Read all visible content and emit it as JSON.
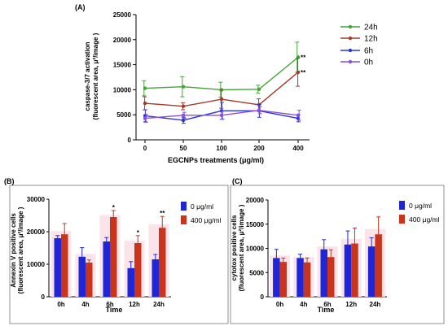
{
  "chart_data": [
    {
      "panel": "(A)",
      "type": "line",
      "xlabel": "EGCNPs treatments (μg/ml)",
      "ylabel_line1": "caspase-3/7 activation",
      "ylabel_line2": "(fluorescent area, μ²/image )",
      "x": [
        0,
        50,
        100,
        200,
        400
      ],
      "x_ticks": [
        "0",
        "50",
        "100",
        "200",
        "400"
      ],
      "ylim": [
        0,
        25000
      ],
      "y_ticks": [
        "0",
        "5000",
        "10000",
        "15000",
        "20000",
        "25000"
      ],
      "legend_position": "right",
      "series": [
        {
          "name": "24h",
          "color": "#3fa535",
          "values": [
            10300,
            10600,
            10000,
            10100,
            16500
          ],
          "errors": [
            1500,
            2000,
            1500,
            800,
            3000
          ]
        },
        {
          "name": "12h",
          "color": "#a43a2a",
          "values": [
            7300,
            6700,
            8100,
            7000,
            13500
          ],
          "errors": [
            1300,
            700,
            1800,
            1200,
            2800
          ]
        },
        {
          "name": "6h",
          "color": "#2b35d6",
          "values": [
            4800,
            3900,
            5800,
            5800,
            4300
          ],
          "errors": [
            1200,
            600,
            1700,
            1300,
            700
          ]
        },
        {
          "name": "0h",
          "color": "#8a4fd8",
          "values": [
            4300,
            4900,
            4900,
            5900,
            4900
          ],
          "errors": [
            800,
            600,
            800,
            700,
            1000
          ]
        }
      ],
      "annotations": [
        {
          "x": 400,
          "series": "24h",
          "text": "**"
        },
        {
          "x": 400,
          "series": "12h",
          "text": "**"
        }
      ]
    },
    {
      "panel": "(B)",
      "type": "bar",
      "xlabel": "Time",
      "ylabel_line1": "Annexin V positive cells",
      "ylabel_line2": "(fluorescent area, μ²/image )",
      "categories": [
        "0h",
        "4h",
        "6h",
        "12h",
        "24h"
      ],
      "ylim": [
        0,
        30000
      ],
      "y_ticks": [
        "0",
        "10000",
        "20000",
        "30000"
      ],
      "legend_position": "right",
      "series": [
        {
          "name": "0 μg/ml",
          "color": "#1f26d6",
          "values": [
            18000,
            12300,
            17000,
            8800,
            11500
          ],
          "errors": [
            800,
            2800,
            1200,
            2000,
            1500
          ]
        },
        {
          "name": "400 μg/ml",
          "color": "#c8341c",
          "values": [
            19200,
            10500,
            24500,
            16500,
            21200
          ],
          "errors": [
            3300,
            800,
            2000,
            2300,
            3500
          ]
        }
      ],
      "annotations": [
        {
          "category": "6h",
          "series": "400 μg/ml",
          "text": "*"
        },
        {
          "category": "12h",
          "series": "400 μg/ml",
          "text": "*"
        },
        {
          "category": "24h",
          "series": "400 μg/ml",
          "text": "**"
        }
      ]
    },
    {
      "panel": "(C)",
      "type": "bar",
      "xlabel": "Time",
      "ylabel_line1": "cytotox positive cells",
      "ylabel_line2": "(fluorescent area, μ²/image )",
      "categories": [
        "0h",
        "4h",
        "6h",
        "12h",
        "24h"
      ],
      "ylim": [
        0,
        20000
      ],
      "y_ticks": [
        "0",
        "5000",
        "10000",
        "15000",
        "20000"
      ],
      "legend_position": "right",
      "series": [
        {
          "name": "0 μg/ml",
          "color": "#1f26d6",
          "values": [
            8000,
            8000,
            9800,
            10800,
            10400
          ],
          "errors": [
            1800,
            800,
            2000,
            2800,
            1800
          ]
        },
        {
          "name": "400 μg/ml",
          "color": "#c8341c",
          "values": [
            7200,
            7100,
            8200,
            11000,
            12900
          ],
          "errors": [
            800,
            900,
            1500,
            3200,
            3600
          ]
        }
      ],
      "annotations": []
    }
  ]
}
